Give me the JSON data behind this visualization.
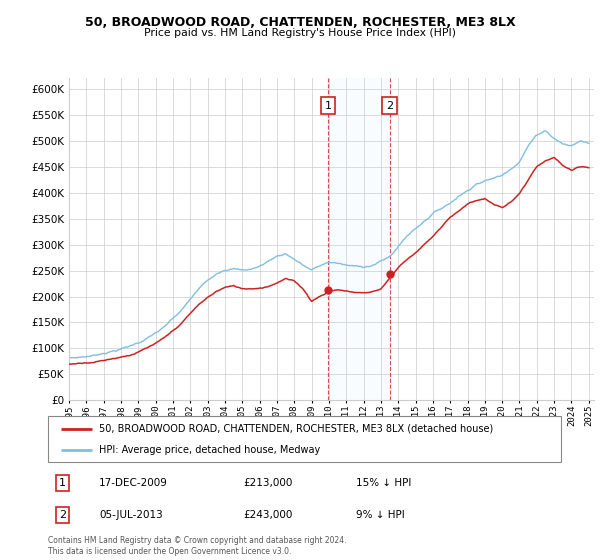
{
  "title": "50, BROADWOOD ROAD, CHATTENDEN, ROCHESTER, ME3 8LX",
  "subtitle": "Price paid vs. HM Land Registry's House Price Index (HPI)",
  "legend_line1": "50, BROADWOOD ROAD, CHATTENDEN, ROCHESTER, ME3 8LX (detached house)",
  "legend_line2": "HPI: Average price, detached house, Medway",
  "annotation1_date": "17-DEC-2009",
  "annotation1_price": 213000,
  "annotation1_note": "15% ↓ HPI",
  "annotation2_date": "05-JUL-2013",
  "annotation2_price": 243000,
  "annotation2_note": "9% ↓ HPI",
  "footer": "Contains HM Land Registry data © Crown copyright and database right 2024.\nThis data is licensed under the Open Government Licence v3.0.",
  "hpi_color": "#7fbfdf",
  "price_color": "#cc2222",
  "annotation_box_color": "#cc2222",
  "span_color": "#ddeeff",
  "ylim": [
    0,
    620000
  ],
  "yticks": [
    0,
    50000,
    100000,
    150000,
    200000,
    250000,
    300000,
    350000,
    400000,
    450000,
    500000,
    550000,
    600000
  ],
  "hpi_keypoints": [
    [
      1995.0,
      82000
    ],
    [
      1995.5,
      83000
    ],
    [
      1996.0,
      85000
    ],
    [
      1996.5,
      87000
    ],
    [
      1997.0,
      92000
    ],
    [
      1997.5,
      96000
    ],
    [
      1998.0,
      100000
    ],
    [
      1998.5,
      105000
    ],
    [
      1999.0,
      112000
    ],
    [
      1999.5,
      120000
    ],
    [
      2000.0,
      130000
    ],
    [
      2000.5,
      140000
    ],
    [
      2001.0,
      155000
    ],
    [
      2001.5,
      170000
    ],
    [
      2002.0,
      190000
    ],
    [
      2002.5,
      210000
    ],
    [
      2003.0,
      225000
    ],
    [
      2003.5,
      240000
    ],
    [
      2004.0,
      250000
    ],
    [
      2004.5,
      252000
    ],
    [
      2005.0,
      248000
    ],
    [
      2005.5,
      250000
    ],
    [
      2006.0,
      255000
    ],
    [
      2006.5,
      265000
    ],
    [
      2007.0,
      275000
    ],
    [
      2007.5,
      280000
    ],
    [
      2008.0,
      270000
    ],
    [
      2008.5,
      258000
    ],
    [
      2009.0,
      248000
    ],
    [
      2009.5,
      255000
    ],
    [
      2010.0,
      262000
    ],
    [
      2010.5,
      260000
    ],
    [
      2011.0,
      255000
    ],
    [
      2011.5,
      252000
    ],
    [
      2012.0,
      252000
    ],
    [
      2012.5,
      255000
    ],
    [
      2013.0,
      262000
    ],
    [
      2013.5,
      270000
    ],
    [
      2014.0,
      290000
    ],
    [
      2014.5,
      310000
    ],
    [
      2015.0,
      325000
    ],
    [
      2015.5,
      340000
    ],
    [
      2016.0,
      355000
    ],
    [
      2016.5,
      365000
    ],
    [
      2017.0,
      375000
    ],
    [
      2017.5,
      390000
    ],
    [
      2018.0,
      400000
    ],
    [
      2018.5,
      415000
    ],
    [
      2019.0,
      420000
    ],
    [
      2019.5,
      425000
    ],
    [
      2020.0,
      430000
    ],
    [
      2020.5,
      445000
    ],
    [
      2021.0,
      460000
    ],
    [
      2021.5,
      490000
    ],
    [
      2022.0,
      510000
    ],
    [
      2022.5,
      520000
    ],
    [
      2023.0,
      505000
    ],
    [
      2023.5,
      495000
    ],
    [
      2024.0,
      490000
    ],
    [
      2024.5,
      500000
    ],
    [
      2025.0,
      495000
    ]
  ],
  "price_keypoints": [
    [
      1995.0,
      70000
    ],
    [
      1995.5,
      72000
    ],
    [
      1996.0,
      75000
    ],
    [
      1996.5,
      77000
    ],
    [
      1997.0,
      80000
    ],
    [
      1997.5,
      84000
    ],
    [
      1998.0,
      88000
    ],
    [
      1998.5,
      92000
    ],
    [
      1999.0,
      98000
    ],
    [
      1999.5,
      105000
    ],
    [
      2000.0,
      113000
    ],
    [
      2000.5,
      122000
    ],
    [
      2001.0,
      135000
    ],
    [
      2001.5,
      150000
    ],
    [
      2002.0,
      168000
    ],
    [
      2002.5,
      185000
    ],
    [
      2003.0,
      198000
    ],
    [
      2003.5,
      210000
    ],
    [
      2004.0,
      218000
    ],
    [
      2004.5,
      220000
    ],
    [
      2005.0,
      215000
    ],
    [
      2005.5,
      216000
    ],
    [
      2006.0,
      218000
    ],
    [
      2006.5,
      222000
    ],
    [
      2007.0,
      230000
    ],
    [
      2007.5,
      238000
    ],
    [
      2008.0,
      232000
    ],
    [
      2008.5,
      218000
    ],
    [
      2009.0,
      195000
    ],
    [
      2009.5,
      205000
    ],
    [
      2009.917,
      213000
    ],
    [
      2010.0,
      215000
    ],
    [
      2010.5,
      218000
    ],
    [
      2011.0,
      215000
    ],
    [
      2011.5,
      213000
    ],
    [
      2012.0,
      212000
    ],
    [
      2012.5,
      215000
    ],
    [
      2013.0,
      220000
    ],
    [
      2013.542,
      243000
    ],
    [
      2014.0,
      262000
    ],
    [
      2014.5,
      278000
    ],
    [
      2015.0,
      292000
    ],
    [
      2015.5,
      308000
    ],
    [
      2016.0,
      322000
    ],
    [
      2016.5,
      340000
    ],
    [
      2017.0,
      358000
    ],
    [
      2017.5,
      372000
    ],
    [
      2018.0,
      385000
    ],
    [
      2018.5,
      392000
    ],
    [
      2019.0,
      396000
    ],
    [
      2019.5,
      385000
    ],
    [
      2020.0,
      378000
    ],
    [
      2020.5,
      388000
    ],
    [
      2021.0,
      405000
    ],
    [
      2021.5,
      430000
    ],
    [
      2022.0,
      455000
    ],
    [
      2022.5,
      465000
    ],
    [
      2023.0,
      470000
    ],
    [
      2023.5,
      455000
    ],
    [
      2024.0,
      445000
    ],
    [
      2024.5,
      450000
    ],
    [
      2025.0,
      448000
    ]
  ]
}
